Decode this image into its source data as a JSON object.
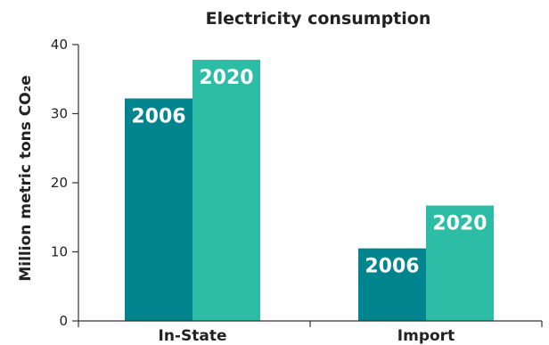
{
  "chart_data": {
    "type": "bar",
    "title": "Electricity consumption",
    "ylabel": "Million metric tons CO₂e",
    "xlabel": "",
    "ylim": [
      0,
      40
    ],
    "yticks": [
      0,
      10,
      20,
      30,
      40
    ],
    "categories": [
      "In-State",
      "Import"
    ],
    "series": [
      {
        "name": "2006",
        "values": [
          32.2,
          10.5
        ],
        "color": "#00858f"
      },
      {
        "name": "2020",
        "values": [
          37.8,
          16.7
        ],
        "color": "#2dbda6"
      }
    ],
    "grid": false,
    "legend": "none",
    "data_labels": "series name inside top of each bar"
  }
}
